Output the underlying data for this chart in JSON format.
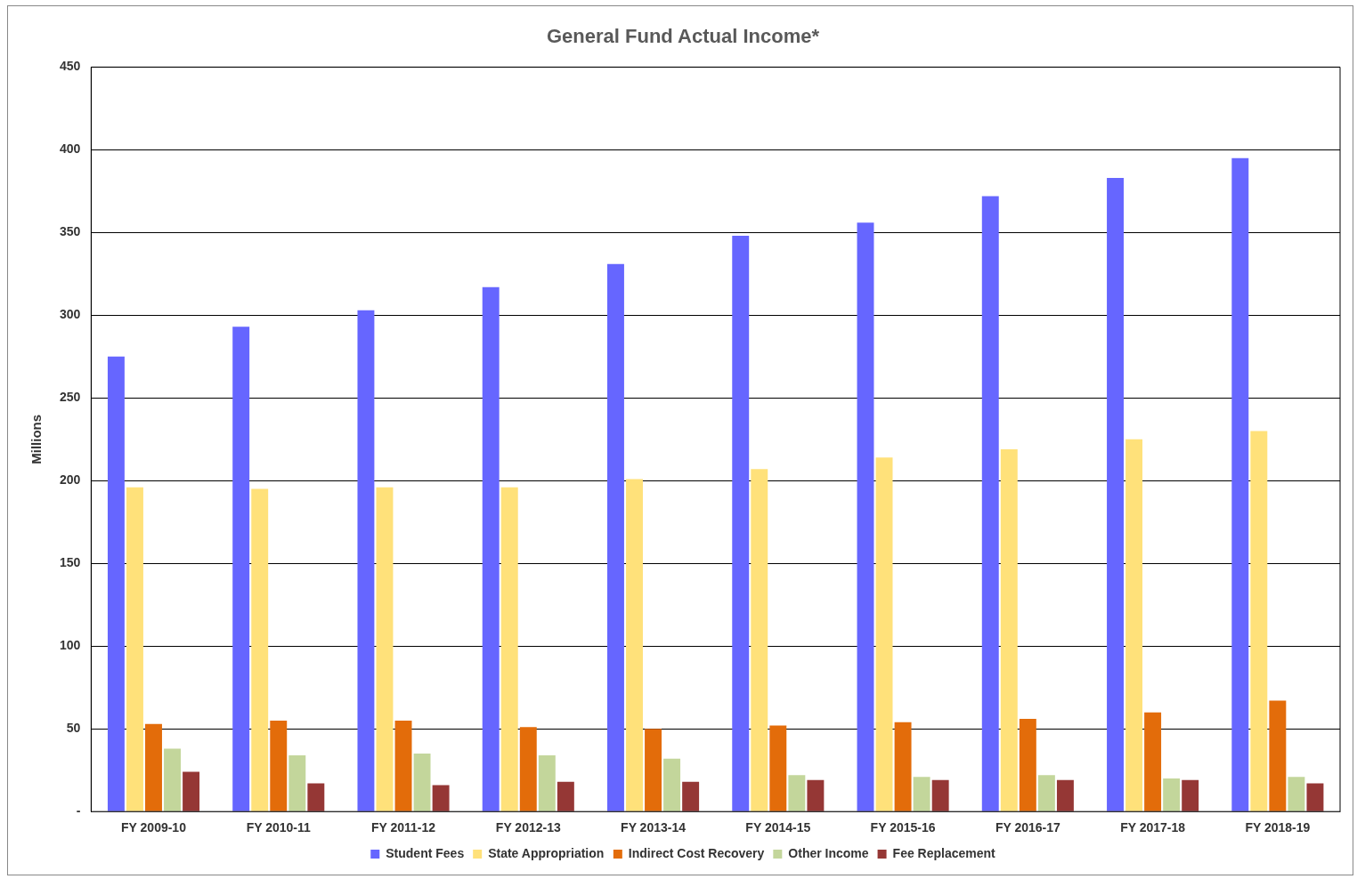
{
  "chart_data": {
    "type": "bar",
    "title": "General Fund Actual Income*",
    "ylabel": "Millions",
    "categories": [
      "FY 2009-10",
      "FY 2010-11",
      "FY 2011-12",
      "FY 2012-13",
      "FY 2013-14",
      "FY 2014-15",
      "FY 2015-16",
      "FY 2016-17",
      "FY 2017-18",
      "FY 2018-19"
    ],
    "series": [
      {
        "name": "Student Fees",
        "color": "#6666ff",
        "values": [
          275,
          293,
          303,
          317,
          331,
          348,
          356,
          372,
          383,
          395
        ]
      },
      {
        "name": "State Appropriation",
        "color": "#ffe17a",
        "values": [
          196,
          195,
          196,
          196,
          201,
          207,
          214,
          219,
          225,
          230
        ]
      },
      {
        "name": "Indirect Cost Recovery",
        "color": "#e36c0a",
        "values": [
          53,
          55,
          55,
          51,
          50,
          52,
          54,
          56,
          60,
          67
        ]
      },
      {
        "name": "Other Income",
        "color": "#c3d69b",
        "values": [
          38,
          34,
          35,
          34,
          32,
          22,
          21,
          22,
          20,
          21
        ]
      },
      {
        "name": "Fee Replacement",
        "color": "#953735",
        "values": [
          24,
          17,
          16,
          18,
          18,
          19,
          19,
          19,
          19,
          17
        ]
      }
    ],
    "ylim": [
      0,
      450
    ],
    "yticks": [
      {
        "value": 0,
        "label": "-"
      },
      50,
      100,
      150,
      200,
      250,
      300,
      350,
      400,
      450
    ],
    "grid": "y",
    "legend": "bottom"
  }
}
